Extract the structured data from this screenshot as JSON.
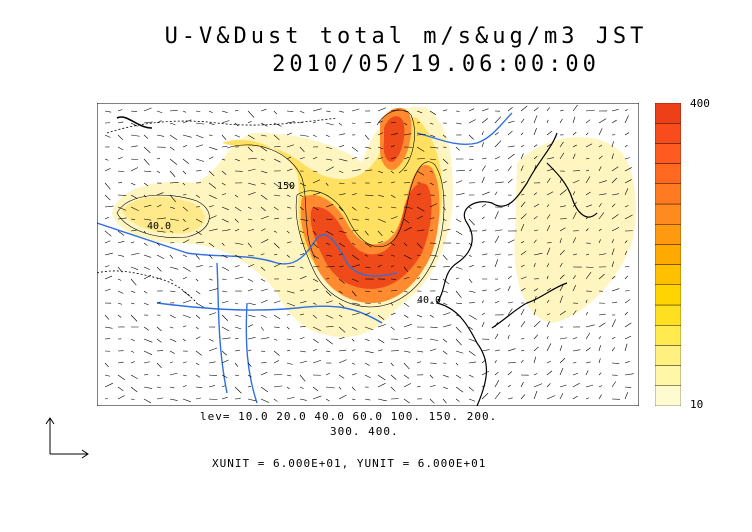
{
  "title": {
    "line1": "U-V&Dust total m/s&ug/m3 JST",
    "line2": "2010/05/19.06:00:00"
  },
  "colorbar": {
    "max_label": "400",
    "min_label": "10",
    "colors": [
      "#fffbd0",
      "#fff6a8",
      "#fff080",
      "#ffea50",
      "#ffe020",
      "#ffd400",
      "#ffc000",
      "#ffaa00",
      "#ff9a10",
      "#ff8a20",
      "#ff7a20",
      "#ff6a20",
      "#ff5a20",
      "#f84c1c",
      "#ee4018"
    ]
  },
  "legend": {
    "levels_line1": "lev= 10.0 20.0 40.0 60.0 100. 150. 200.",
    "levels_line2": "300. 400.",
    "units": "XUNIT = 6.000E+01, YUNIT = 6.000E+01"
  },
  "map": {
    "contour_labels": [
      "150",
      "40.0",
      "40.0"
    ],
    "colors": {
      "ocean": "#ffffff",
      "land_border": "#000000",
      "river": "#2f6fe0",
      "dust_light": "#fff5c0",
      "dust_mid": "#ffe060",
      "dust_high": "#ff7a2a",
      "dust_max": "#ee4a1a"
    }
  }
}
